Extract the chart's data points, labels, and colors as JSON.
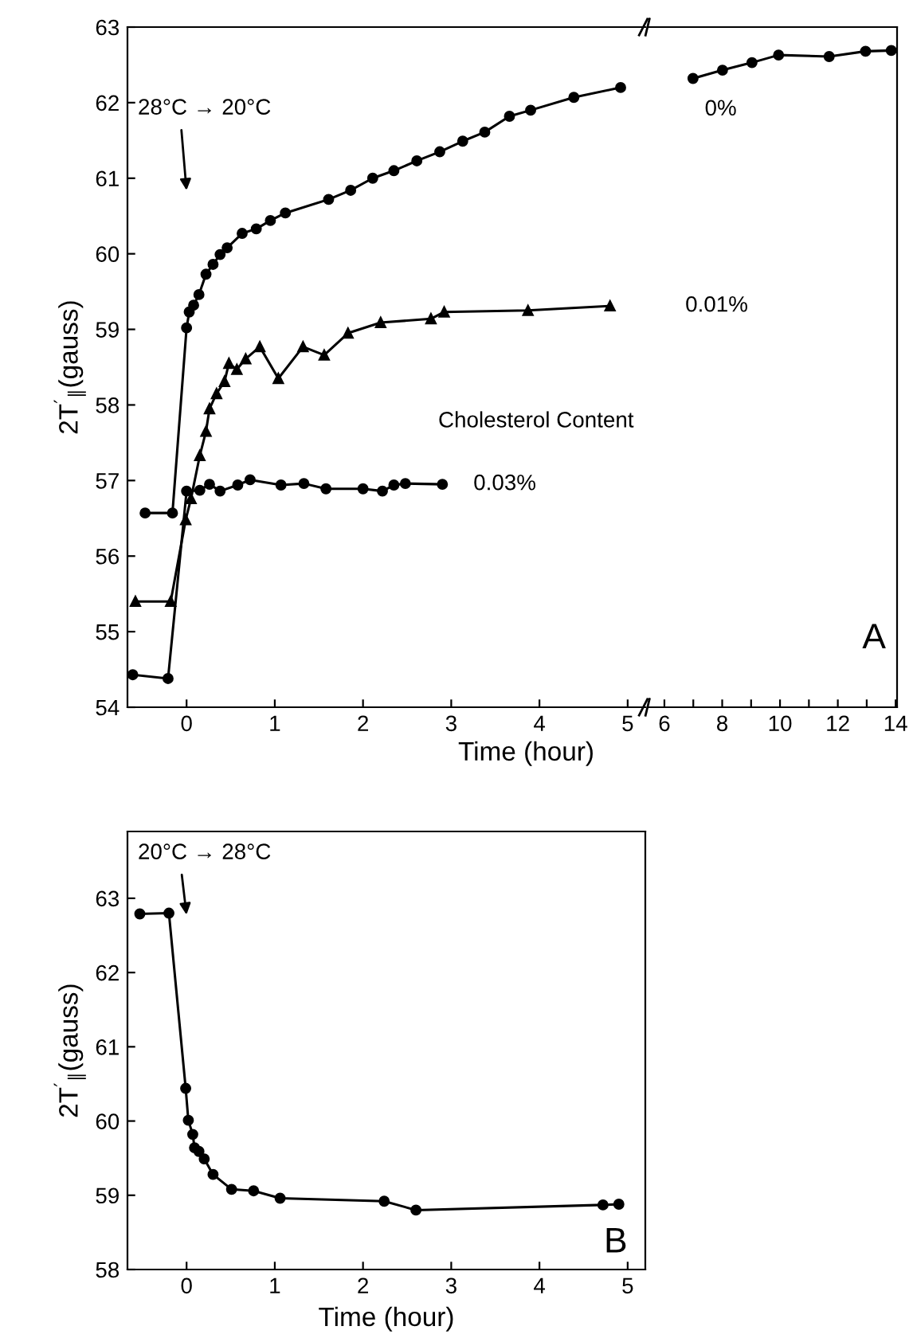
{
  "chart_data": [
    {
      "type": "line",
      "ylabel": "2T$^{′}$$_{∥}$(gauss)",
      "xlabel": "Time (hour)",
      "xlim": [
        -0.67,
        5.2
      ],
      "ylim": [
        54,
        63
      ],
      "xticks": [
        0,
        1,
        2,
        3,
        4,
        5
      ],
      "yticks": [
        54,
        55,
        56,
        57,
        58,
        59,
        60,
        61,
        62,
        63
      ],
      "grid": false,
      "line_style": "solid",
      "annotations": [
        "28°C → 20°C",
        "Cholesterol Content"
      ],
      "series": [
        {
          "name": "0%",
          "color": "#000000",
          "marker": "circle",
          "x": [
            -0.47,
            -0.16,
            0,
            0.03,
            0.08,
            0.14,
            0.22,
            0.3,
            0.38,
            0.46,
            0.63,
            0.79,
            0.95,
            1.12,
            1.61,
            1.86,
            2.11,
            2.35,
            2.61,
            2.87,
            3.13,
            3.38,
            3.66,
            3.9,
            4.39,
            4.92
          ],
          "values": [
            56.57,
            56.57,
            59.02,
            59.23,
            59.32,
            59.46,
            59.73,
            59.86,
            59.99,
            60.08,
            60.27,
            60.33,
            60.44,
            60.54,
            60.72,
            60.84,
            61.0,
            61.1,
            61.23,
            61.35,
            61.49,
            61.61,
            61.82,
            61.9,
            62.07,
            62.2
          ]
        },
        {
          "name": "0.01%",
          "color": "#000000",
          "marker": "triangle",
          "x": [
            -0.58,
            -0.18,
            -0.01,
            0.05,
            0.15,
            0.22,
            0.26,
            0.34,
            0.43,
            0.48,
            0.57,
            0.67,
            0.83,
            1.04,
            1.32,
            1.56,
            1.83,
            2.2,
            2.77,
            2.92,
            3.87,
            4.8
          ],
          "values": [
            55.4,
            55.4,
            56.48,
            56.76,
            57.33,
            57.65,
            57.95,
            58.15,
            58.31,
            58.55,
            58.47,
            58.61,
            58.77,
            58.35,
            58.77,
            58.66,
            58.95,
            59.09,
            59.14,
            59.23,
            59.25,
            59.31
          ]
        },
        {
          "name": "0.03%",
          "color": "#000000",
          "marker": "circle",
          "x": [
            -0.61,
            -0.21,
            0,
            0.15,
            0.26,
            0.38,
            0.58,
            0.72,
            1.07,
            1.33,
            1.58,
            2.0,
            2.22,
            2.35,
            2.48,
            2.9
          ],
          "values": [
            54.43,
            54.38,
            56.86,
            56.87,
            56.95,
            56.86,
            56.94,
            57.01,
            56.94,
            56.96,
            56.89,
            56.89,
            56.86,
            56.94,
            56.96,
            56.95
          ]
        }
      ]
    },
    {
      "type": "line",
      "xlim": [
        5.45,
        14.05
      ],
      "ylim": [
        54,
        63
      ],
      "xticks": [
        6,
        {
          "value": 7,
          "label": null
        },
        8,
        {
          "value": 9,
          "label": null
        },
        10,
        {
          "value": 11,
          "label": null
        },
        12,
        {
          "value": 13,
          "label": null
        },
        14
      ],
      "tick_labels": "x",
      "grid": false,
      "line_style": "solid",
      "annotations": [
        "A"
      ],
      "series": [
        {
          "color": "#000000",
          "marker": "circle",
          "x": [
            6.99,
            8.01,
            9.03,
            9.95,
            11.7,
            12.96,
            13.85
          ],
          "values": [
            62.32,
            62.43,
            62.53,
            62.63,
            62.61,
            62.68,
            62.69
          ]
        }
      ]
    },
    {
      "type": "line",
      "xlabel": "Time (hour)",
      "ylabel": "2T$^{′}$$_{∥}$(gauss)",
      "xlim": [
        -0.67,
        5.2
      ],
      "ylim": [
        58,
        63.9
      ],
      "xticks": [
        0,
        1,
        2,
        3,
        4,
        5
      ],
      "yticks": [
        58,
        59,
        60,
        61,
        62,
        63
      ],
      "grid": false,
      "line_style": "solid",
      "annotations": [
        "20°C → 28°C",
        "B"
      ],
      "series": [
        {
          "color": "#000000",
          "marker": "circle",
          "x": [
            -0.53,
            -0.2,
            -0.01,
            0.02,
            0.07,
            0.09,
            0.14,
            0.2,
            0.3,
            0.51,
            0.76,
            1.06,
            2.24,
            2.6,
            4.72,
            4.9
          ],
          "values": [
            62.79,
            62.8,
            60.44,
            60.01,
            59.82,
            59.64,
            59.59,
            59.49,
            59.28,
            59.08,
            59.06,
            58.96,
            58.92,
            58.8,
            58.87,
            58.88
          ]
        }
      ]
    }
  ]
}
